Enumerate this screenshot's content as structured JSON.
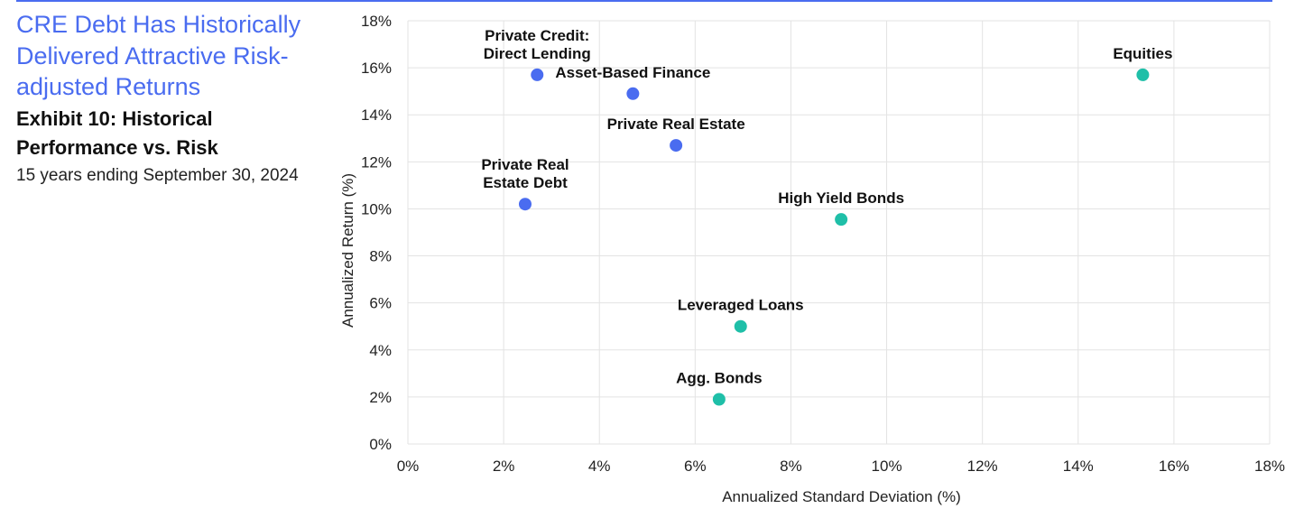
{
  "header": {
    "headline": "CRE Debt Has Historically Delivered Attractive Risk-adjusted Returns",
    "exhibit_title": "Exhibit 10: Historical Performance vs. Risk",
    "subtitle": "15 years ending September 30, 2024"
  },
  "chart_data": {
    "type": "scatter",
    "title": "Exhibit 10: Historical Performance vs. Risk",
    "xlabel": "Annualized Standard Deviation (%)",
    "ylabel": "Annualized Return (%)",
    "xlim": [
      0,
      18
    ],
    "ylim": [
      0,
      18
    ],
    "x_ticks": [
      0,
      2,
      4,
      6,
      8,
      10,
      12,
      14,
      16,
      18
    ],
    "y_ticks": [
      0,
      2,
      4,
      6,
      8,
      10,
      12,
      14,
      16,
      18
    ],
    "tick_suffix": "%",
    "grid": true,
    "colors": {
      "private": "#4a6cf0",
      "public": "#1fbfa8"
    },
    "points": [
      {
        "name": "Private Credit: Direct Lending",
        "label_lines": [
          "Private Credit:",
          "Direct Lending"
        ],
        "x": 2.7,
        "y": 15.7,
        "group": "private",
        "label_pos": "above"
      },
      {
        "name": "Asset-Based Finance",
        "label_lines": [
          "Asset-Based Finance"
        ],
        "x": 4.7,
        "y": 14.9,
        "group": "private",
        "label_pos": "above"
      },
      {
        "name": "Private Real Estate",
        "label_lines": [
          "Private Real Estate"
        ],
        "x": 5.6,
        "y": 12.7,
        "group": "private",
        "label_pos": "above"
      },
      {
        "name": "Private Real Estate Debt",
        "label_lines": [
          "Private Real",
          "Estate Debt"
        ],
        "x": 2.45,
        "y": 10.2,
        "group": "private",
        "label_pos": "above"
      },
      {
        "name": "Equities",
        "label_lines": [
          "Equities"
        ],
        "x": 15.35,
        "y": 15.7,
        "group": "public",
        "label_pos": "above"
      },
      {
        "name": "High Yield Bonds",
        "label_lines": [
          "High Yield Bonds"
        ],
        "x": 9.05,
        "y": 9.55,
        "group": "public",
        "label_pos": "above"
      },
      {
        "name": "Leveraged Loans",
        "label_lines": [
          "Leveraged Loans"
        ],
        "x": 6.95,
        "y": 5.0,
        "group": "public",
        "label_pos": "above"
      },
      {
        "name": "Agg. Bonds",
        "label_lines": [
          "Agg. Bonds"
        ],
        "x": 6.5,
        "y": 1.9,
        "group": "public",
        "label_pos": "above"
      }
    ]
  }
}
